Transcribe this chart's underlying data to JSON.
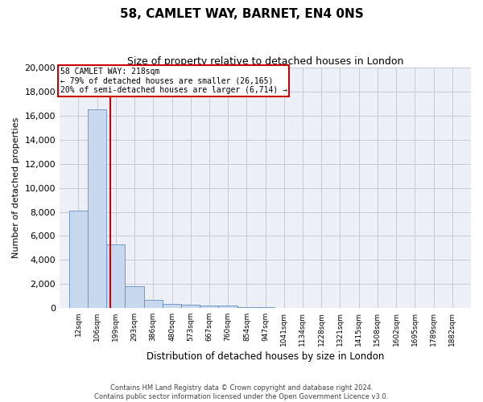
{
  "title": "58, CAMLET WAY, BARNET, EN4 0NS",
  "subtitle": "Size of property relative to detached houses in London",
  "xlabel": "Distribution of detached houses by size in London",
  "ylabel": "Number of detached properties",
  "bar_values": [
    8100,
    16500,
    5300,
    1800,
    700,
    350,
    270,
    200,
    200,
    100,
    50,
    30,
    20,
    10,
    5,
    3,
    2,
    1,
    1,
    0,
    0
  ],
  "bin_edges": [
    12,
    106,
    199,
    293,
    386,
    480,
    573,
    667,
    760,
    854,
    947,
    1041,
    1134,
    1228,
    1321,
    1415,
    1508,
    1602,
    1695,
    1789,
    1882
  ],
  "tick_labels": [
    "12sqm",
    "106sqm",
    "199sqm",
    "293sqm",
    "386sqm",
    "480sqm",
    "573sqm",
    "667sqm",
    "760sqm",
    "854sqm",
    "947sqm",
    "1041sqm",
    "1134sqm",
    "1228sqm",
    "1321sqm",
    "1415sqm",
    "1508sqm",
    "1602sqm",
    "1695sqm",
    "1789sqm",
    "1882sqm"
  ],
  "bar_color": "#c8d8ee",
  "bar_edge_color": "#6090c0",
  "grid_color": "#c8c8d8",
  "background_color": "#eef0f8",
  "vline_x": 218,
  "vline_color": "#cc0000",
  "annotation_title": "58 CAMLET WAY: 218sqm",
  "annotation_line1": "← 79% of detached houses are smaller (26,165)",
  "annotation_line2": "20% of semi-detached houses are larger (6,714) →",
  "annotation_box_color": "#cc0000",
  "ylim": [
    0,
    20000
  ],
  "yticks": [
    0,
    2000,
    4000,
    6000,
    8000,
    10000,
    12000,
    14000,
    16000,
    18000,
    20000
  ],
  "footer_line1": "Contains HM Land Registry data © Crown copyright and database right 2024.",
  "footer_line2": "Contains public sector information licensed under the Open Government Licence v3.0."
}
